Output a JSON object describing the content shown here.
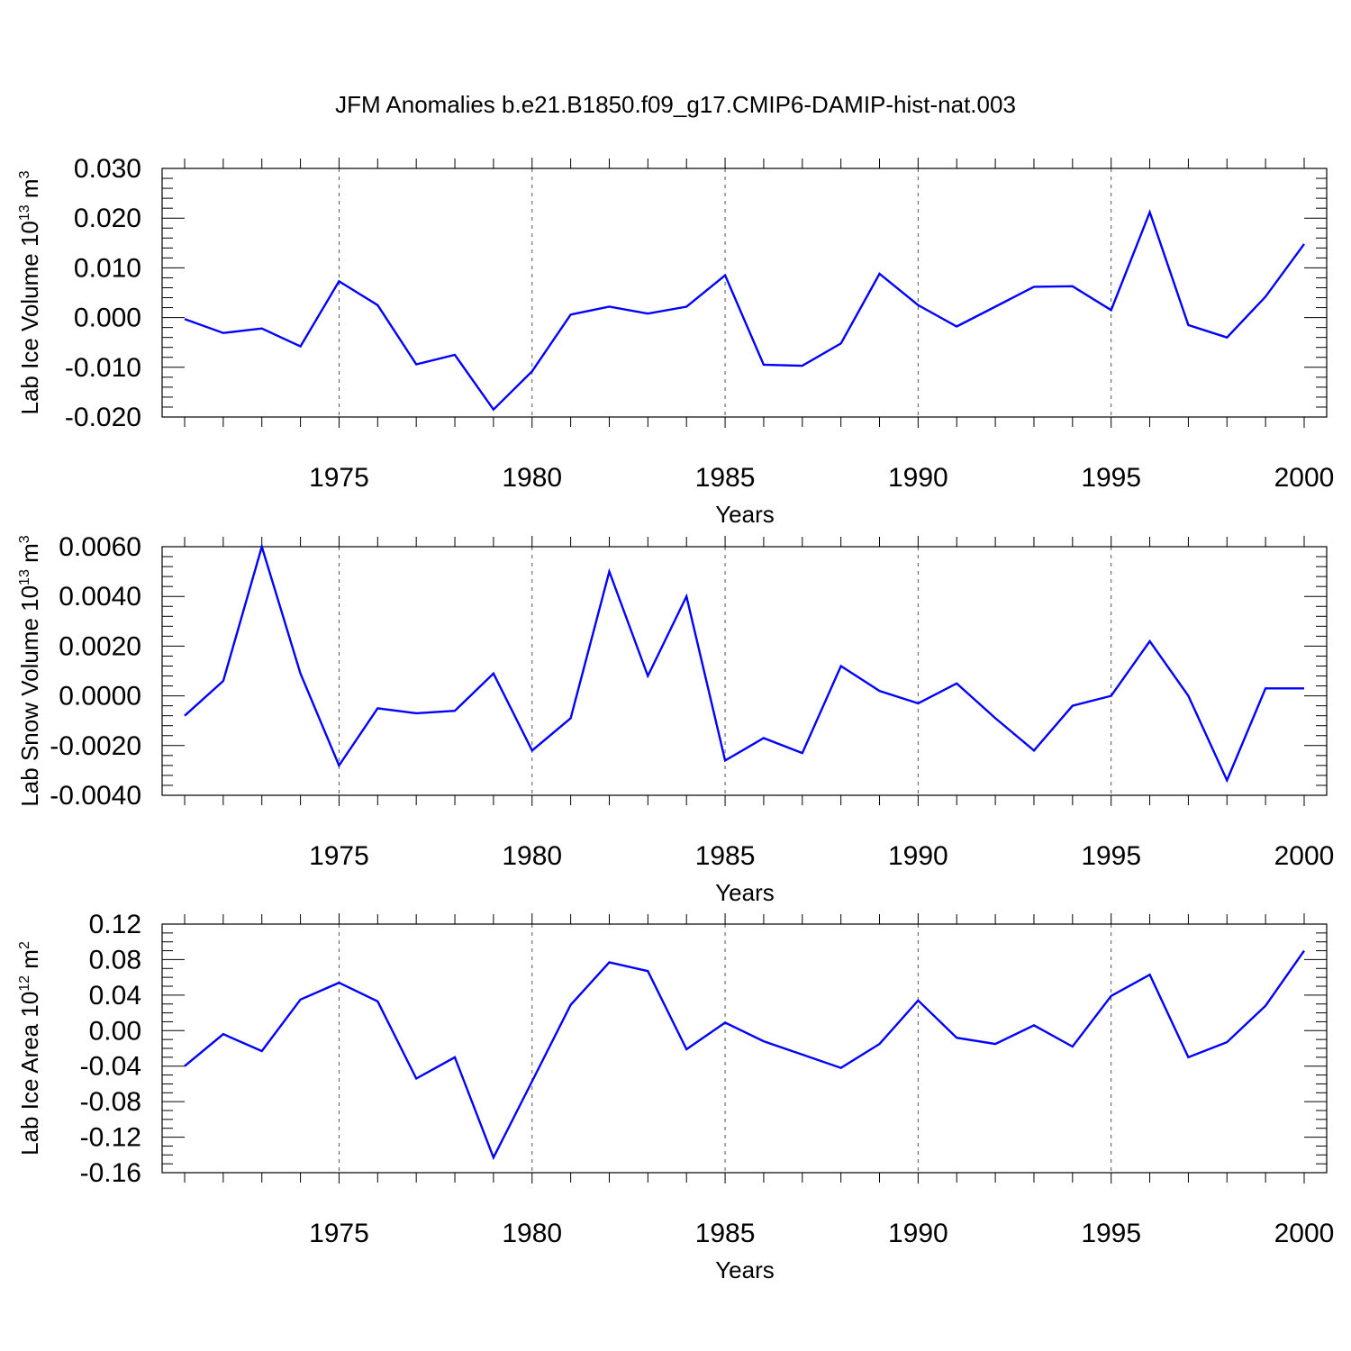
{
  "title": "JFM Anomalies b.e21.B1850.f09_g17.CMIP6-DAMIP-hist-nat.003",
  "series_color": "#0000ff",
  "chart_data": [
    {
      "type": "line",
      "name": "ice-volume",
      "xlabel": "Years",
      "ylabel": {
        "text": "Lab Ice Volume 10",
        "sup": "13",
        "unit": "m",
        "unit_sup": "3"
      },
      "xlim": [
        1971,
        2000
      ],
      "ylim": [
        -0.02,
        0.03
      ],
      "x_ticks": [
        1975,
        1980,
        1985,
        1990,
        1995,
        2000
      ],
      "x_tick_labels": [
        "1975",
        "1980",
        "1985",
        "1990",
        "1995",
        "2000"
      ],
      "y_ticks": [
        -0.02,
        -0.01,
        0.0,
        0.01,
        0.02,
        0.03
      ],
      "y_tick_labels": [
        "-0.020",
        "-0.010",
        "0.000",
        "0.010",
        "0.020",
        "0.030"
      ],
      "y_minor_step": 0.002,
      "grid": "dashed vertical at major x ticks",
      "x": [
        1971,
        1972,
        1973,
        1974,
        1975,
        1976,
        1977,
        1978,
        1979,
        1980,
        1981,
        1982,
        1983,
        1984,
        1985,
        1986,
        1987,
        1988,
        1989,
        1990,
        1991,
        1992,
        1993,
        1994,
        1995,
        1996,
        1997,
        1998,
        1999,
        2000
      ],
      "y": [
        -0.0003,
        -0.0031,
        -0.0022,
        -0.0058,
        0.0073,
        0.0025,
        -0.0094,
        -0.0075,
        -0.0185,
        -0.0108,
        0.0006,
        0.0022,
        0.0008,
        0.0022,
        0.0085,
        -0.0095,
        -0.0097,
        -0.0052,
        0.0088,
        0.0025,
        -0.0018,
        0.0022,
        0.0062,
        0.0063,
        0.0015,
        0.0212,
        -0.0015,
        -0.004,
        0.0042,
        0.0148
      ]
    },
    {
      "type": "line",
      "name": "snow-volume",
      "xlabel": "Years",
      "ylabel": {
        "text": "Lab Snow Volume 10",
        "sup": "13",
        "unit": "m",
        "unit_sup": "3"
      },
      "xlim": [
        1971,
        2000
      ],
      "ylim": [
        -0.004,
        0.006
      ],
      "x_ticks": [
        1975,
        1980,
        1985,
        1990,
        1995,
        2000
      ],
      "x_tick_labels": [
        "1975",
        "1980",
        "1985",
        "1990",
        "1995",
        "2000"
      ],
      "y_ticks": [
        -0.004,
        -0.002,
        0.0,
        0.002,
        0.004,
        0.006
      ],
      "y_tick_labels": [
        "-0.0040",
        "-0.0020",
        "0.0000",
        "0.0020",
        "0.0040",
        "0.0060"
      ],
      "y_minor_step": 0.0004,
      "grid": "dashed vertical at major x ticks",
      "x": [
        1971,
        1972,
        1973,
        1974,
        1975,
        1976,
        1977,
        1978,
        1979,
        1980,
        1981,
        1982,
        1983,
        1984,
        1985,
        1986,
        1987,
        1988,
        1989,
        1990,
        1991,
        1992,
        1993,
        1994,
        1995,
        1996,
        1997,
        1998,
        1999,
        2000
      ],
      "y": [
        -0.0008,
        0.0006,
        0.006,
        0.0009,
        -0.0028,
        -0.0005,
        -0.0007,
        -0.0006,
        0.0009,
        -0.0022,
        -0.0009,
        0.005,
        0.0008,
        0.004,
        -0.0026,
        -0.0017,
        -0.0023,
        0.0012,
        0.0002,
        -0.0003,
        0.0005,
        -0.0009,
        -0.0022,
        -0.0004,
        0.0,
        0.0022,
        0.0,
        -0.0034,
        0.0003,
        0.0003
      ]
    },
    {
      "type": "line",
      "name": "ice-area",
      "xlabel": "Years",
      "ylabel": {
        "text": "Lab Ice Area 10",
        "sup": "12",
        "unit": "m",
        "unit_sup": "2"
      },
      "xlim": [
        1971,
        2000
      ],
      "ylim": [
        -0.16,
        0.12
      ],
      "x_ticks": [
        1975,
        1980,
        1985,
        1990,
        1995,
        2000
      ],
      "x_tick_labels": [
        "1975",
        "1980",
        "1985",
        "1990",
        "1995",
        "2000"
      ],
      "y_ticks": [
        -0.16,
        -0.12,
        -0.08,
        -0.04,
        0.0,
        0.04,
        0.08,
        0.12
      ],
      "y_tick_labels": [
        "-0.16",
        "-0.12",
        "-0.08",
        "-0.04",
        "0.00",
        "0.04",
        "0.08",
        "0.12"
      ],
      "y_minor_step": 0.01,
      "grid": "dashed vertical at major x ticks",
      "x": [
        1971,
        1972,
        1973,
        1974,
        1975,
        1976,
        1977,
        1978,
        1979,
        1980,
        1981,
        1982,
        1983,
        1984,
        1985,
        1986,
        1987,
        1988,
        1989,
        1990,
        1991,
        1992,
        1993,
        1994,
        1995,
        1996,
        1997,
        1998,
        1999,
        2000
      ],
      "y": [
        -0.04,
        -0.004,
        -0.023,
        0.035,
        0.054,
        0.033,
        -0.054,
        -0.03,
        -0.143,
        -0.057,
        0.029,
        0.077,
        0.067,
        -0.021,
        0.009,
        -0.012,
        -0.027,
        -0.042,
        -0.015,
        0.034,
        -0.008,
        -0.015,
        0.006,
        -0.018,
        0.039,
        0.063,
        -0.03,
        -0.013,
        0.028,
        0.09
      ]
    }
  ]
}
